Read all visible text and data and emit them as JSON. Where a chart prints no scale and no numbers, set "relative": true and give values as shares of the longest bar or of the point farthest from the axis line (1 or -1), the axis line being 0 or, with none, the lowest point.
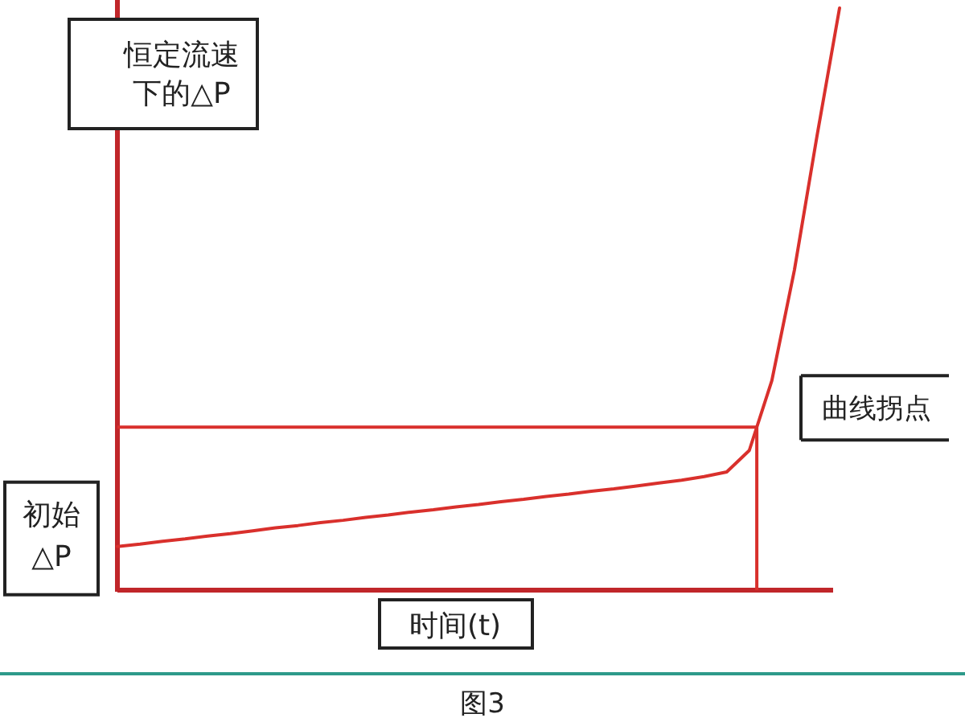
{
  "chart_data": {
    "type": "line",
    "relative": true,
    "ylabel": "恒定流速下的△P",
    "xlabel": "时间(t)",
    "categories": [
      null,
      null,
      null,
      null,
      null,
      null,
      null,
      null,
      null,
      null,
      null,
      null,
      null,
      null,
      null,
      null,
      null,
      null,
      null,
      null,
      null,
      null,
      null,
      null,
      null,
      null,
      null,
      null,
      null,
      null,
      null,
      null,
      null
    ],
    "series": [
      {
        "color": "#d9302c",
        "values": [
          0.075,
          0.079,
          0.084,
          0.088,
          0.093,
          0.097,
          0.102,
          0.107,
          0.111,
          0.116,
          0.12,
          0.125,
          0.129,
          0.134,
          0.138,
          0.143,
          0.147,
          0.152,
          0.156,
          0.161,
          0.165,
          0.17,
          0.174,
          0.179,
          0.184,
          0.189,
          0.195,
          0.203,
          0.24,
          0.36,
          0.55,
          0.78,
          1
        ]
      }
    ],
    "ref_lines": [
      {
        "axis": "y",
        "value": 0.28,
        "label": "曲线拐点",
        "color": "#d9302c"
      }
    ],
    "annotations": [
      "初始△P",
      "图3"
    ],
    "grid": false,
    "marker": "none",
    "line_style": "solid"
  }
}
